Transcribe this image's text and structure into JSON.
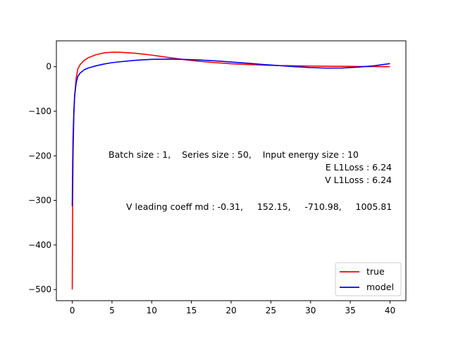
{
  "chart_data": {
    "type": "line",
    "title": "",
    "xlabel": "",
    "ylabel": "",
    "xlim": [
      -2,
      42
    ],
    "ylim": [
      -525,
      58
    ],
    "xticks": [
      0,
      5,
      10,
      15,
      20,
      25,
      30,
      35,
      40
    ],
    "xtick_labels": [
      "0",
      "5",
      "10",
      "15",
      "20",
      "25",
      "30",
      "35",
      "40"
    ],
    "yticks": [
      0,
      -100,
      -200,
      -300,
      -400,
      -500
    ],
    "ytick_labels": [
      "0",
      "−100",
      "−200",
      "−300",
      "−400",
      "−500"
    ],
    "grid": false,
    "legend_position": "bottom-right",
    "series": [
      {
        "name": "true",
        "color": "#ff0000",
        "x": [
          0,
          0.05,
          0.1,
          0.2,
          0.3,
          0.5,
          0.7,
          1,
          1.5,
          2,
          3,
          4,
          5,
          6,
          8,
          10,
          12,
          14,
          16,
          18,
          20,
          22,
          24,
          26,
          28,
          30,
          32,
          34,
          36,
          38,
          40
        ],
        "y": [
          -500,
          -300,
          -200,
          -110,
          -65,
          -25,
          -5,
          5,
          14,
          20,
          27,
          31,
          32.5,
          32.5,
          30,
          26,
          21,
          16,
          12,
          9,
          6.5,
          5,
          3.5,
          2.5,
          2,
          1.5,
          1,
          0.8,
          0.5,
          0.3,
          0
        ]
      },
      {
        "name": "model",
        "color": "#0000ff",
        "x": [
          0,
          0.05,
          0.1,
          0.2,
          0.3,
          0.5,
          0.7,
          1,
          1.5,
          2,
          3,
          4,
          5,
          6,
          8,
          10,
          12,
          14,
          16,
          18,
          20,
          22,
          24,
          26,
          28,
          30,
          32,
          34,
          36,
          38,
          40
        ],
        "y": [
          -313,
          -220,
          -160,
          -100,
          -65,
          -35,
          -22,
          -14,
          -7,
          -3,
          2,
          6,
          9,
          11,
          14.5,
          16.5,
          17,
          16.5,
          15,
          13,
          10.5,
          8,
          5,
          2.5,
          0,
          -2,
          -3.2,
          -3,
          -1,
          2,
          7
        ]
      }
    ],
    "annotations": [
      "Batch size : 1,    Series size : 50,    Input energy size : 10",
      "E L1Loss : 6.24",
      "V L1Loss : 6.24",
      "V leading coeff md : -0.31,     152.15,     -710.98,     1005.81"
    ]
  }
}
